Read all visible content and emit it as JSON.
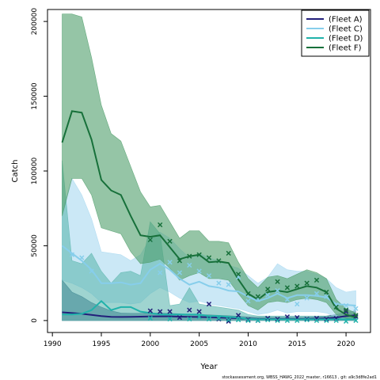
{
  "chart_data": {
    "type": "line",
    "xlabel": "Year",
    "ylabel": "Catch",
    "xlim": [
      1989.5,
      2022.5
    ],
    "ylim": [
      -8000,
      208000
    ],
    "xticks": [
      1990,
      1995,
      2000,
      2005,
      2010,
      2015,
      2020
    ],
    "yticks": [
      0,
      50000,
      100000,
      150000,
      200000
    ],
    "legend_position": "top-right",
    "series": [
      {
        "name": "(Fleet A)",
        "color": "#221f7a",
        "band_color": "#1a4a6e",
        "x": [
          1991,
          1992,
          1993,
          1994,
          1995,
          1996,
          1997,
          1998,
          1999,
          2000,
          2001,
          2002,
          2003,
          2004,
          2005,
          2006,
          2007,
          2008,
          2009,
          2010,
          2011,
          2012,
          2013,
          2014,
          2015,
          2016,
          2017,
          2018,
          2019,
          2020,
          2021
        ],
        "fit": [
          5500,
          5000,
          4500,
          3800,
          3000,
          2500,
          2400,
          2500,
          2600,
          2700,
          2800,
          2800,
          2600,
          2500,
          2400,
          2200,
          2000,
          1800,
          1500,
          1200,
          1000,
          1000,
          1000,
          1000,
          1000,
          1000,
          1200,
          1500,
          2000,
          3000,
          3500
        ],
        "lower": [
          0,
          0,
          0,
          0,
          0,
          0,
          0,
          0,
          0,
          0,
          0,
          0,
          0,
          0,
          0,
          0,
          0,
          0,
          0,
          0,
          0,
          0,
          0,
          0,
          0,
          0,
          0,
          0,
          0,
          0,
          0
        ],
        "upper": [
          27000,
          19000,
          16000,
          12000,
          9000,
          6500,
          5000,
          4800,
          4800,
          5000,
          5000,
          4800,
          4500,
          4200,
          4000,
          3800,
          3500,
          3200,
          2800,
          2500,
          2200,
          2200,
          2200,
          2200,
          2200,
          2200,
          2500,
          3000,
          4000,
          5500,
          6500
        ],
        "obs_x": [
          2000,
          2001,
          2002,
          2003,
          2004,
          2005,
          2006,
          2007,
          2008,
          2009,
          2010,
          2011,
          2012,
          2013,
          2014,
          2015,
          2016,
          2017,
          2018,
          2019,
          2020,
          2021
        ],
        "obs_y": [
          6500,
          6000,
          6000,
          2000,
          7000,
          6000,
          11000,
          1000,
          -500,
          3500,
          500,
          0,
          1500,
          1000,
          2500,
          2000,
          1000,
          1500,
          1000,
          1500,
          6000,
          2500
        ]
      },
      {
        "name": "(Fleet C)",
        "color": "#87ceeb",
        "band_color": "#a8d8f0",
        "x": [
          1991,
          1992,
          1993,
          1994,
          1995,
          1996,
          1997,
          1998,
          1999,
          2000,
          2001,
          2002,
          2003,
          2004,
          2005,
          2006,
          2007,
          2008,
          2009,
          2010,
          2011,
          2012,
          2013,
          2014,
          2015,
          2016,
          2017,
          2018,
          2019,
          2020,
          2021
        ],
        "fit": [
          50000,
          45000,
          40000,
          34000,
          25000,
          25000,
          25500,
          24000,
          25000,
          34000,
          38000,
          34000,
          28000,
          24000,
          26000,
          23000,
          22000,
          20000,
          19500,
          16000,
          13000,
          15000,
          18000,
          15000,
          17000,
          17000,
          16500,
          15500,
          11000,
          10500,
          10000
        ],
        "lower": [
          27000,
          25000,
          22000,
          18000,
          12000,
          12000,
          12000,
          11000,
          12000,
          18000,
          22000,
          19000,
          15000,
          12000,
          13000,
          11000,
          10000,
          9000,
          8000,
          6000,
          4000,
          5000,
          7000,
          5000,
          6000,
          6000,
          6000,
          5000,
          2000,
          1500,
          1000
        ],
        "upper": [
          73000,
          95000,
          84000,
          68000,
          46000,
          45000,
          44000,
          40000,
          44000,
          55000,
          59000,
          55000,
          48000,
          42000,
          45000,
          42000,
          40000,
          37000,
          35000,
          30000,
          25000,
          29000,
          38000,
          34000,
          33000,
          33000,
          31000,
          28000,
          22000,
          19000,
          20000
        ],
        "obs_x": [
          1992,
          1993,
          1994,
          2000,
          2001,
          2002,
          2003,
          2004,
          2005,
          2006,
          2007,
          2008,
          2009,
          2010,
          2011,
          2012,
          2013,
          2014,
          2015,
          2016,
          2017,
          2018,
          2019,
          2020,
          2021
        ],
        "obs_y": [
          44000,
          42000,
          33000,
          54000,
          32000,
          39000,
          32000,
          37000,
          33000,
          30000,
          25000,
          24000,
          29000,
          13000,
          14000,
          17000,
          20000,
          14000,
          11000,
          15000,
          18000,
          16000,
          10500,
          10000,
          8000
        ]
      },
      {
        "name": "(Fleet D)",
        "color": "#20b2aa",
        "band_color": "#5fb8b0",
        "x": [
          1991,
          1992,
          1993,
          1994,
          1995,
          1996,
          1997,
          1998,
          1999,
          2000,
          2001,
          2002,
          2003,
          2004,
          2005,
          2006,
          2007,
          2008,
          2009,
          2010,
          2011,
          2012,
          2013,
          2014,
          2015,
          2016,
          2017,
          2018,
          2019,
          2020,
          2021
        ],
        "fit": [
          4000,
          4000,
          4500,
          7000,
          13000,
          7000,
          9000,
          9000,
          6000,
          5000,
          4000,
          4000,
          4000,
          4000,
          4000,
          3000,
          3000,
          2500,
          2000,
          1000,
          800,
          800,
          800,
          800,
          800,
          800,
          800,
          800,
          800,
          800,
          800
        ],
        "lower": [
          0,
          0,
          0,
          0,
          0,
          0,
          0,
          0,
          0,
          0,
          0,
          0,
          0,
          0,
          0,
          0,
          0,
          0,
          0,
          0,
          0,
          0,
          0,
          0,
          0,
          0,
          0,
          0,
          0,
          0,
          0
        ],
        "upper": [
          107000,
          40000,
          38000,
          45000,
          33000,
          25000,
          32000,
          33000,
          30000,
          66000,
          58000,
          10000,
          11000,
          22000,
          11000,
          10000,
          9000,
          8000,
          7000,
          4000,
          3000,
          3000,
          3000,
          3000,
          3000,
          3000,
          3000,
          3000,
          3000,
          3000,
          3000
        ],
        "obs_x": [
          2000,
          2002,
          2004,
          2005,
          2006,
          2007,
          2008,
          2009,
          2010,
          2011,
          2012,
          2013,
          2014,
          2015,
          2016,
          2017,
          2018,
          2019,
          2020,
          2021
        ],
        "obs_y": [
          1500,
          1000,
          1000,
          2500,
          1000,
          1500,
          500,
          500,
          0,
          0,
          500,
          0,
          0,
          0,
          500,
          0,
          0,
          0,
          -500,
          0
        ]
      },
      {
        "name": "(Fleet F)",
        "color": "#17703a",
        "band_color": "#4f9e6a",
        "x": [
          1991,
          1992,
          1993,
          1994,
          1995,
          1996,
          1997,
          1998,
          1999,
          2000,
          2001,
          2002,
          2003,
          2004,
          2005,
          2006,
          2007,
          2008,
          2009,
          2010,
          2011,
          2012,
          2013,
          2014,
          2015,
          2016,
          2017,
          2018,
          2019,
          2020,
          2021
        ],
        "fit": [
          119000,
          140000,
          139000,
          121000,
          94000,
          87000,
          84000,
          70000,
          57000,
          56000,
          57000,
          49000,
          41000,
          43000,
          44000,
          39000,
          39500,
          38500,
          27500,
          18000,
          14000,
          19000,
          20000,
          19000,
          21000,
          23000,
          22000,
          19000,
          8000,
          4000,
          2000
        ],
        "lower": [
          70000,
          95000,
          95000,
          84000,
          62000,
          60000,
          58000,
          46000,
          38000,
          39000,
          41000,
          35000,
          27000,
          30000,
          32000,
          28000,
          28000,
          27000,
          18000,
          10000,
          7000,
          12000,
          13000,
          12000,
          14000,
          15000,
          14000,
          12000,
          4000,
          1500,
          500
        ],
        "upper": [
          205000,
          205000,
          203000,
          176000,
          144000,
          125000,
          120000,
          103000,
          86000,
          76000,
          77000,
          66000,
          55000,
          60000,
          60000,
          53000,
          53000,
          52000,
          39000,
          28000,
          22000,
          29000,
          30000,
          28000,
          31000,
          34000,
          32000,
          28000,
          14000,
          8000,
          5000
        ],
        "obs_x": [
          2000,
          2001,
          2002,
          2003,
          2004,
          2005,
          2006,
          2007,
          2008,
          2009,
          2010,
          2011,
          2012,
          2013,
          2014,
          2015,
          2016,
          2017,
          2018,
          2019,
          2020,
          2021
        ],
        "obs_y": [
          54000,
          64000,
          53000,
          40000,
          43000,
          44000,
          42000,
          40000,
          45000,
          31000,
          18000,
          16000,
          21000,
          26000,
          22000,
          23000,
          25000,
          27000,
          19000,
          9000,
          7000,
          3500
        ]
      }
    ]
  },
  "footnote": "stockassessment.org, WBSS_HAWG_2022_master, r16613 , git: a9c3d8fe2ad1"
}
